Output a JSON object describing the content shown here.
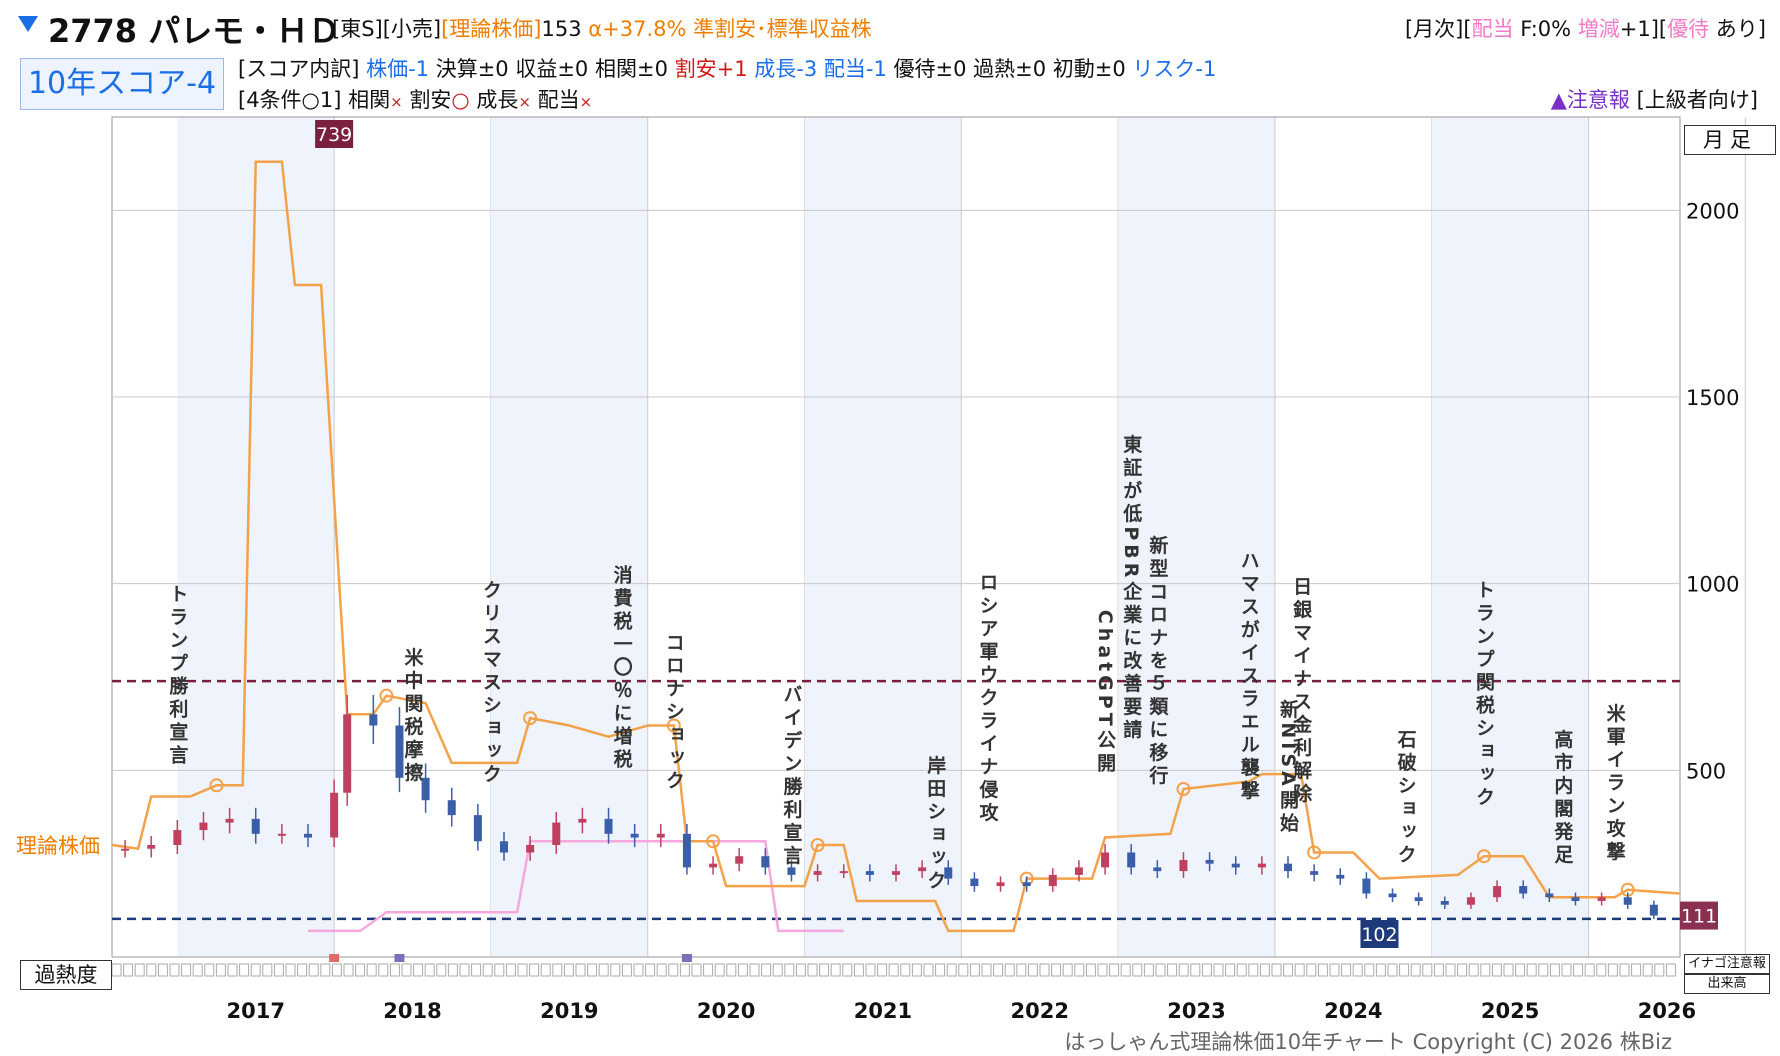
{
  "header": {
    "ticker": "2778 パレモ・ＨＤ",
    "market": "[東S][小売]",
    "theory_label": "[理論株価]",
    "theory_value": "153",
    "alpha": "α+37.8%",
    "tags": "準割安･標準収益株",
    "right_monthly": "[月次][",
    "right_div": "配当",
    "right_f": " F:0% ",
    "right_inc": "増減",
    "right_inc_val": "+1][",
    "right_yutai": "優待",
    "right_ari": " あり]"
  },
  "score": {
    "label": "10年スコア-4",
    "breakdown_head": "[スコア内訳]",
    "items": [
      {
        "text": " 株価-1",
        "color": "blue"
      },
      {
        "text": " 決算±0",
        "color": "black"
      },
      {
        "text": " 収益±0",
        "color": "black"
      },
      {
        "text": " 相関±0",
        "color": "black"
      },
      {
        "text": " 割安+1",
        "color": "red"
      },
      {
        "text": " 成長-3",
        "color": "blue"
      },
      {
        "text": " 配当-1",
        "color": "blue"
      },
      {
        "text": " 優待±0",
        "color": "black"
      },
      {
        "text": " 過熱±0",
        "color": "black"
      },
      {
        "text": " 初動±0",
        "color": "black"
      },
      {
        "text": " リスク-1",
        "color": "blue"
      }
    ],
    "conditions_head": "[4条件○1]",
    "conditions": [
      {
        "label": " 相関",
        "mark": "×"
      },
      {
        "label": " 割安",
        "mark": "○"
      },
      {
        "label": " 成長",
        "mark": "×"
      },
      {
        "label": " 配当",
        "mark": "×"
      }
    ],
    "warning_mark": "▲注意報",
    "warning_level": " [上級者向け]"
  },
  "labels": {
    "monthly": "月足",
    "theory_price": "理論株価",
    "overheat": "過熱度",
    "legend_inago": "イナゴ注意報",
    "legend_volume": "出来高",
    "footer": "はっしゃん式理論株価10年チャート Copyright (C) 2026 株Biz",
    "high_value": "739",
    "low_value": "102",
    "current_value": "111"
  },
  "chart_data": {
    "type": "candlestick",
    "y_range": [
      0,
      2250
    ],
    "y_ticks": [
      500,
      1000,
      1500,
      2000
    ],
    "x_years": [
      "2017",
      "2018",
      "2019",
      "2020",
      "2021",
      "2022",
      "2023",
      "2024",
      "2025",
      "2026"
    ],
    "x_range": [
      "2016-07",
      "2026-07"
    ],
    "high_line": 739,
    "low_line": 102,
    "price_close_monthly": [
      {
        "date": "2016-08",
        "v": 290
      },
      {
        "date": "2016-10",
        "v": 300
      },
      {
        "date": "2016-12",
        "v": 340
      },
      {
        "date": "2017-02",
        "v": 360
      },
      {
        "date": "2017-04",
        "v": 370
      },
      {
        "date": "2017-06",
        "v": 330
      },
      {
        "date": "2017-08",
        "v": 330
      },
      {
        "date": "2017-10",
        "v": 320
      },
      {
        "date": "2017-12",
        "v": 440
      },
      {
        "date": "2018-01",
        "v": 650
      },
      {
        "date": "2018-03",
        "v": 620
      },
      {
        "date": "2018-05",
        "v": 480
      },
      {
        "date": "2018-07",
        "v": 420
      },
      {
        "date": "2018-09",
        "v": 380
      },
      {
        "date": "2018-11",
        "v": 310
      },
      {
        "date": "2019-01",
        "v": 280
      },
      {
        "date": "2019-03",
        "v": 300
      },
      {
        "date": "2019-05",
        "v": 360
      },
      {
        "date": "2019-07",
        "v": 370
      },
      {
        "date": "2019-09",
        "v": 330
      },
      {
        "date": "2019-11",
        "v": 320
      },
      {
        "date": "2020-01",
        "v": 330
      },
      {
        "date": "2020-03",
        "v": 240
      },
      {
        "date": "2020-05",
        "v": 250
      },
      {
        "date": "2020-07",
        "v": 270
      },
      {
        "date": "2020-09",
        "v": 240
      },
      {
        "date": "2020-11",
        "v": 220
      },
      {
        "date": "2021-01",
        "v": 230
      },
      {
        "date": "2021-03",
        "v": 230
      },
      {
        "date": "2021-05",
        "v": 220
      },
      {
        "date": "2021-07",
        "v": 230
      },
      {
        "date": "2021-09",
        "v": 240
      },
      {
        "date": "2021-11",
        "v": 210
      },
      {
        "date": "2022-01",
        "v": 190
      },
      {
        "date": "2022-03",
        "v": 200
      },
      {
        "date": "2022-05",
        "v": 190
      },
      {
        "date": "2022-07",
        "v": 220
      },
      {
        "date": "2022-09",
        "v": 240
      },
      {
        "date": "2022-11",
        "v": 280
      },
      {
        "date": "2023-01",
        "v": 240
      },
      {
        "date": "2023-03",
        "v": 230
      },
      {
        "date": "2023-05",
        "v": 260
      },
      {
        "date": "2023-07",
        "v": 250
      },
      {
        "date": "2023-09",
        "v": 240
      },
      {
        "date": "2023-11",
        "v": 250
      },
      {
        "date": "2024-01",
        "v": 230
      },
      {
        "date": "2024-03",
        "v": 220
      },
      {
        "date": "2024-05",
        "v": 210
      },
      {
        "date": "2024-07",
        "v": 170
      },
      {
        "date": "2024-09",
        "v": 160
      },
      {
        "date": "2024-11",
        "v": 150
      },
      {
        "date": "2025-01",
        "v": 140
      },
      {
        "date": "2025-03",
        "v": 160
      },
      {
        "date": "2025-05",
        "v": 190
      },
      {
        "date": "2025-07",
        "v": 170
      },
      {
        "date": "2025-09",
        "v": 160
      },
      {
        "date": "2025-11",
        "v": 150
      },
      {
        "date": "2026-01",
        "v": 160
      },
      {
        "date": "2026-03",
        "v": 140
      },
      {
        "date": "2026-05",
        "v": 111
      }
    ],
    "theory_price_line": [
      {
        "date": "2016-07",
        "v": 300
      },
      {
        "date": "2016-09",
        "v": 290
      },
      {
        "date": "2016-10",
        "v": 430
      },
      {
        "date": "2017-01",
        "v": 430
      },
      {
        "date": "2017-03",
        "v": 460
      },
      {
        "date": "2017-05",
        "v": 460
      },
      {
        "date": "2017-06",
        "v": 2130
      },
      {
        "date": "2017-08",
        "v": 2130
      },
      {
        "date": "2017-09",
        "v": 1800
      },
      {
        "date": "2017-11",
        "v": 1800
      },
      {
        "date": "2018-01",
        "v": 650
      },
      {
        "date": "2018-03",
        "v": 650
      },
      {
        "date": "2018-04",
        "v": 700
      },
      {
        "date": "2018-07",
        "v": 680
      },
      {
        "date": "2018-09",
        "v": 520
      },
      {
        "date": "2018-11",
        "v": 520
      },
      {
        "date": "2019-02",
        "v": 520
      },
      {
        "date": "2019-03",
        "v": 640
      },
      {
        "date": "2019-06",
        "v": 620
      },
      {
        "date": "2019-09",
        "v": 590
      },
      {
        "date": "2019-12",
        "v": 620
      },
      {
        "date": "2020-02",
        "v": 620
      },
      {
        "date": "2020-03",
        "v": 310
      },
      {
        "date": "2020-05",
        "v": 310
      },
      {
        "date": "2020-06",
        "v": 190
      },
      {
        "date": "2020-12",
        "v": 190
      },
      {
        "date": "2021-01",
        "v": 300
      },
      {
        "date": "2021-03",
        "v": 300
      },
      {
        "date": "2021-04",
        "v": 150
      },
      {
        "date": "2021-10",
        "v": 150
      },
      {
        "date": "2021-11",
        "v": 70
      },
      {
        "date": "2022-04",
        "v": 70
      },
      {
        "date": "2022-05",
        "v": 210
      },
      {
        "date": "2022-10",
        "v": 210
      },
      {
        "date": "2022-11",
        "v": 320
      },
      {
        "date": "2023-04",
        "v": 330
      },
      {
        "date": "2023-05",
        "v": 450
      },
      {
        "date": "2023-10",
        "v": 470
      },
      {
        "date": "2023-11",
        "v": 490
      },
      {
        "date": "2024-02",
        "v": 490
      },
      {
        "date": "2024-03",
        "v": 280
      },
      {
        "date": "2024-06",
        "v": 280
      },
      {
        "date": "2024-08",
        "v": 210
      },
      {
        "date": "2025-02",
        "v": 220
      },
      {
        "date": "2025-04",
        "v": 270
      },
      {
        "date": "2025-07",
        "v": 270
      },
      {
        "date": "2025-09",
        "v": 160
      },
      {
        "date": "2026-02",
        "v": 160
      },
      {
        "date": "2026-03",
        "v": 180
      },
      {
        "date": "2026-07",
        "v": 170
      }
    ],
    "pink_line": [
      {
        "date": "2017-10",
        "v": 70
      },
      {
        "date": "2018-02",
        "v": 70
      },
      {
        "date": "2018-04",
        "v": 120
      },
      {
        "date": "2019-02",
        "v": 120
      },
      {
        "date": "2019-03",
        "v": 310
      },
      {
        "date": "2020-09",
        "v": 310
      },
      {
        "date": "2020-10",
        "v": 70
      },
      {
        "date": "2021-03",
        "v": 70
      }
    ],
    "events": [
      {
        "date": "2016-12",
        "text": "トランプ勝利宣言",
        "y": 1000
      },
      {
        "date": "2018-06",
        "text": "米中関税摩擦",
        "y": 830
      },
      {
        "date": "2018-12",
        "text": "クリスマスショック",
        "y": 1010
      },
      {
        "date": "2019-10",
        "text": "消費税一〇％に増税",
        "y": 1050
      },
      {
        "date": "2020-02",
        "text": "コロナショック",
        "y": 870
      },
      {
        "date": "2020-11",
        "text": "バイデン勝利宣言",
        "y": 730
      },
      {
        "date": "2021-10",
        "text": "岸田ショック",
        "y": 540
      },
      {
        "date": "2022-02",
        "text": "ロシア軍ウクライナ侵攻",
        "y": 1030
      },
      {
        "date": "2022-11",
        "text": "ChatGPT公開",
        "y": 930
      },
      {
        "date": "2023-01",
        "text": "東証が低PBR企業に改善要請",
        "y": 1400
      },
      {
        "date": "2023-03",
        "text": "新型コロナを５類に移行",
        "y": 1130
      },
      {
        "date": "2023-10",
        "text": "ハマスがイスラエル襲撃",
        "y": 1090
      },
      {
        "date": "2024-01",
        "text": "新NISA開始",
        "y": 690
      },
      {
        "date": "2024-02",
        "text": "日銀マイナス金利解除",
        "y": 1020
      },
      {
        "date": "2024-10",
        "text": "石破ショック",
        "y": 610
      },
      {
        "date": "2025-04",
        "text": "トランプ関税ショック",
        "y": 1010
      },
      {
        "date": "2025-10",
        "text": "高市内閣発足",
        "y": 610
      },
      {
        "date": "2026-02",
        "text": "米軍イラン攻撃",
        "y": 680
      }
    ],
    "overheat_marks": [
      {
        "date": "2017-12",
        "color": "#e06a6a"
      },
      {
        "date": "2018-05",
        "color": "#7a70b8"
      },
      {
        "date": "2020-03",
        "color": "#7a70b8"
      }
    ]
  }
}
